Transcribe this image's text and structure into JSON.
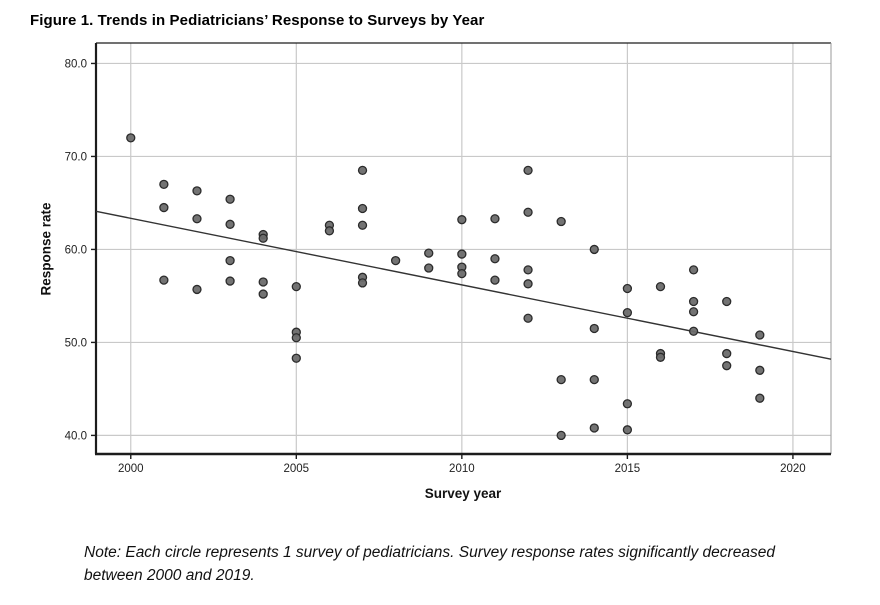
{
  "page": {
    "title": "Figure 1. Trends in Pediatricians’ Response to Surveys by Year",
    "note": {
      "line1": "Note: Each circle represents 1 survey of pediatricians. Survey response rates significantly decreased",
      "line2": "between 2000  and 2019."
    }
  },
  "chart_data": {
    "type": "scatter",
    "xlabel": "Survey year",
    "ylabel": "Response rate",
    "xlim": [
      1998.95,
      2021.15
    ],
    "ylim": [
      38.0,
      82.2
    ],
    "grid": true,
    "legend": "none",
    "x_ticks": [
      {
        "value": 2000,
        "label": "2000"
      },
      {
        "value": 2005,
        "label": "2005"
      },
      {
        "value": 2010,
        "label": "2010"
      },
      {
        "value": 2015,
        "label": "2015"
      },
      {
        "value": 2020,
        "label": "2020"
      }
    ],
    "y_ticks": [
      {
        "value": 80,
        "label": "80.0"
      },
      {
        "value": 70,
        "label": "70.0"
      },
      {
        "value": 60,
        "label": "60.0"
      },
      {
        "value": 50,
        "label": "50.0"
      },
      {
        "value": 40,
        "label": "40.0"
      }
    ],
    "points": [
      [
        2000,
        72.0
      ],
      [
        2001,
        67.0
      ],
      [
        2001,
        64.5
      ],
      [
        2001,
        56.7
      ],
      [
        2002,
        66.3
      ],
      [
        2002,
        63.3
      ],
      [
        2002,
        55.7
      ],
      [
        2003,
        65.4
      ],
      [
        2003,
        62.7
      ],
      [
        2003,
        58.8
      ],
      [
        2003,
        56.6
      ],
      [
        2004,
        61.6
      ],
      [
        2004,
        61.2
      ],
      [
        2004,
        56.5
      ],
      [
        2004,
        55.2
      ],
      [
        2005,
        56.0
      ],
      [
        2005,
        51.1
      ],
      [
        2005,
        50.5
      ],
      [
        2005,
        48.3
      ],
      [
        2006,
        62.6
      ],
      [
        2006,
        62.0
      ],
      [
        2007,
        68.5
      ],
      [
        2007,
        64.4
      ],
      [
        2007,
        62.6
      ],
      [
        2007,
        57.0
      ],
      [
        2007,
        56.4
      ],
      [
        2008,
        58.8
      ],
      [
        2009,
        59.6
      ],
      [
        2009,
        58.0
      ],
      [
        2010,
        63.2
      ],
      [
        2010,
        59.5
      ],
      [
        2010,
        58.1
      ],
      [
        2010,
        57.4
      ],
      [
        2011,
        63.3
      ],
      [
        2011,
        59.0
      ],
      [
        2011,
        56.7
      ],
      [
        2012,
        68.5
      ],
      [
        2012,
        64.0
      ],
      [
        2012,
        57.8
      ],
      [
        2012,
        56.3
      ],
      [
        2012,
        52.6
      ],
      [
        2013,
        63.0
      ],
      [
        2013,
        46.0
      ],
      [
        2013,
        40.0
      ],
      [
        2014,
        60.0
      ],
      [
        2014,
        51.5
      ],
      [
        2014,
        46.0
      ],
      [
        2014,
        40.8
      ],
      [
        2015,
        55.8
      ],
      [
        2015,
        53.2
      ],
      [
        2015,
        43.4
      ],
      [
        2015,
        40.6
      ],
      [
        2016,
        56.0
      ],
      [
        2016,
        48.8
      ],
      [
        2016,
        48.4
      ],
      [
        2017,
        57.8
      ],
      [
        2017,
        54.4
      ],
      [
        2017,
        53.3
      ],
      [
        2017,
        51.2
      ],
      [
        2018,
        54.4
      ],
      [
        2018,
        48.8
      ],
      [
        2018,
        47.5
      ],
      [
        2019,
        50.8
      ],
      [
        2019,
        47.0
      ],
      [
        2019,
        44.0
      ]
    ],
    "trend_line": {
      "x1": 1998.95,
      "y1": 64.1,
      "x2": 2021.15,
      "y2": 48.2
    },
    "colors": {
      "point_fill": "#6b6b6b",
      "point_stroke": "#2b2b2b",
      "grid": "#c9c9c9",
      "axis": "#1c1c1c",
      "frame_light": "#9a9a9a",
      "trend": "#333333",
      "tick_label": "#222222"
    }
  }
}
